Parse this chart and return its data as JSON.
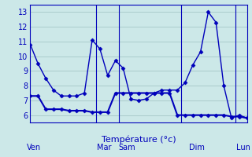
{
  "xlabel": "Température (°c)",
  "bg_color": "#cce8e8",
  "grid_color": "#aacccc",
  "line_color": "#0000bb",
  "border_color": "#0000bb",
  "ylim": [
    5.5,
    13.5
  ],
  "yticks": [
    6,
    7,
    8,
    9,
    10,
    11,
    12,
    13
  ],
  "xlim": [
    0,
    28
  ],
  "day_labels": [
    "Ven",
    "Mar",
    "Sam",
    "Dim",
    "Lun"
  ],
  "day_x": [
    0.5,
    9.5,
    12.5,
    21.5,
    27.5
  ],
  "day_sep_x": [
    0,
    8.5,
    11.5,
    19.5,
    26.5,
    28
  ],
  "line1_x": [
    0,
    1,
    2,
    3,
    4,
    5,
    6,
    7,
    8,
    9,
    10,
    11,
    12,
    13,
    14,
    15,
    16,
    17,
    18,
    19,
    20,
    21,
    22,
    23,
    24,
    25,
    26,
    27,
    28
  ],
  "line1_y": [
    10.8,
    9.5,
    8.5,
    7.7,
    7.3,
    7.3,
    7.3,
    7.5,
    11.1,
    10.5,
    8.7,
    9.7,
    9.2,
    7.1,
    7.0,
    7.1,
    7.5,
    7.7,
    7.7,
    7.7,
    8.2,
    9.4,
    10.3,
    13.0,
    12.3,
    8.0,
    5.8,
    6.0,
    5.8
  ],
  "line2_x": [
    0,
    1,
    2,
    3,
    4,
    5,
    6,
    7,
    8,
    9,
    10,
    11,
    12,
    13,
    14,
    15,
    16,
    17,
    18,
    19,
    20,
    21,
    22,
    23,
    24,
    25,
    26,
    27,
    28
  ],
  "line2_y": [
    7.3,
    7.3,
    6.4,
    6.4,
    6.4,
    6.3,
    6.3,
    6.3,
    6.2,
    6.2,
    6.2,
    7.5,
    7.5,
    7.5,
    7.5,
    7.5,
    7.5,
    7.5,
    7.5,
    6.0,
    6.0,
    6.0,
    6.0,
    6.0,
    6.0,
    6.0,
    5.9,
    5.9,
    5.8
  ]
}
